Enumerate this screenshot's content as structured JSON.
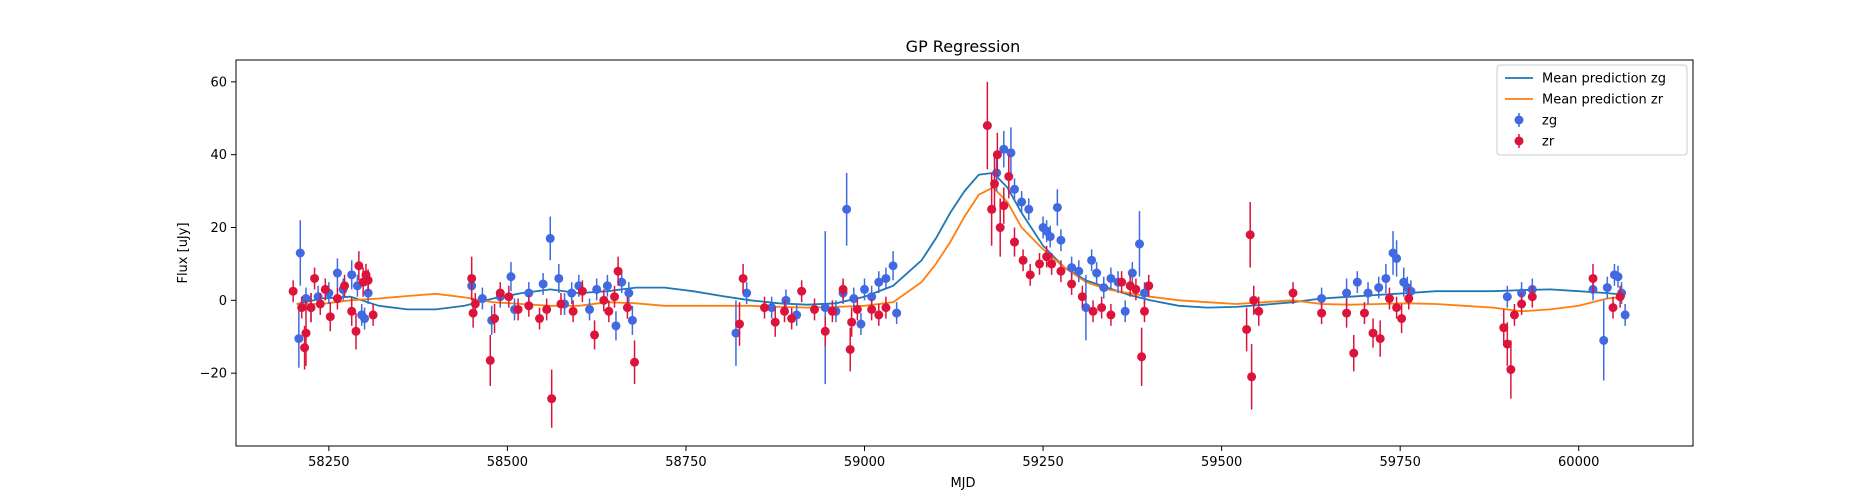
{
  "chart_data": {
    "type": "scatter",
    "title": "GP Regression",
    "xlabel": "MJD",
    "ylabel": "Flux [uJy]",
    "xlim": [
      58120,
      60160
    ],
    "ylim": [
      -40,
      66
    ],
    "xticks": [
      58250,
      58500,
      58750,
      59000,
      59250,
      59500,
      59750,
      60000
    ],
    "yticks": [
      -20,
      0,
      20,
      40,
      60
    ],
    "grid": false,
    "legend_position": "top-right",
    "colors": {
      "zg": "#4169e1",
      "zr": "#dc143c",
      "mean_zg": "#1f77b4",
      "mean_zr": "#ff7f0e"
    },
    "lines": [
      {
        "name": "Mean prediction zg",
        "x": [
          58205,
          58240,
          58280,
          58320,
          58360,
          58400,
          58440,
          58480,
          58520,
          58560,
          58600,
          58640,
          58680,
          58720,
          58760,
          58800,
          58840,
          58880,
          58920,
          58960,
          59000,
          59040,
          59080,
          59100,
          59120,
          59140,
          59160,
          59180,
          59200,
          59220,
          59250,
          59280,
          59310,
          59340,
          59370,
          59400,
          59440,
          59480,
          59520,
          59560,
          59600,
          59640,
          59680,
          59720,
          59760,
          59800,
          59840,
          59880,
          59920,
          59960,
          60000,
          60040,
          60065
        ],
        "y": [
          -1,
          0.5,
          1,
          -1.5,
          -2.5,
          -2.5,
          -1.5,
          0.5,
          2,
          3,
          2,
          2.5,
          3.5,
          3.5,
          2.5,
          1.2,
          0,
          -0.8,
          -1.2,
          -0.8,
          1,
          4,
          11,
          17,
          24,
          30,
          34.5,
          35,
          31,
          24,
          15,
          9,
          5.5,
          3.5,
          1.5,
          0,
          -1.5,
          -2,
          -1.8,
          -1.2,
          -0.5,
          0.5,
          1,
          1.5,
          2,
          2.5,
          2.5,
          2.5,
          2.8,
          3,
          2.5,
          2,
          1.5
        ]
      },
      {
        "name": "Mean prediction zr",
        "x": [
          58205,
          58240,
          58280,
          58320,
          58360,
          58400,
          58440,
          58480,
          58520,
          58560,
          58600,
          58640,
          58680,
          58720,
          58760,
          58800,
          58840,
          58880,
          58920,
          58960,
          59000,
          59040,
          59080,
          59100,
          59120,
          59140,
          59160,
          59180,
          59200,
          59220,
          59250,
          59280,
          59310,
          59340,
          59370,
          59400,
          59440,
          59480,
          59520,
          59560,
          59600,
          59640,
          59680,
          59720,
          59760,
          59800,
          59840,
          59880,
          59920,
          59960,
          60000,
          60040,
          60065
        ],
        "y": [
          -1,
          -1,
          0,
          0.5,
          1.2,
          1.8,
          0.8,
          -0.5,
          -1,
          -1.5,
          -1.5,
          -0.5,
          -0.8,
          -1.5,
          -1.5,
          -1.5,
          -1.5,
          -1.8,
          -2,
          -1.8,
          -1.5,
          -0.5,
          5,
          10,
          16,
          23,
          29,
          31,
          27,
          20,
          14,
          9,
          5,
          3,
          2,
          1,
          0,
          -0.5,
          -1,
          -0.5,
          0,
          -1,
          -1.2,
          -1,
          -0.8,
          -1,
          -1.5,
          -2,
          -3,
          -2.5,
          -1.5,
          0.5,
          1
        ]
      }
    ],
    "series": [
      {
        "name": "zg",
        "points": [
          [
            58208,
            -10.5,
            8
          ],
          [
            58210,
            13,
            9
          ],
          [
            58218,
            0.5,
            3
          ],
          [
            58225,
            -2,
            4
          ],
          [
            58235,
            1,
            3
          ],
          [
            58250,
            2,
            3
          ],
          [
            58262,
            7.5,
            4
          ],
          [
            58270,
            3,
            3
          ],
          [
            58282,
            7,
            4
          ],
          [
            58290,
            4,
            3
          ],
          [
            58296,
            -4,
            3
          ],
          [
            58300,
            -5,
            3
          ],
          [
            58305,
            2,
            3
          ],
          [
            58450,
            4,
            4
          ],
          [
            58465,
            0.5,
            3
          ],
          [
            58478,
            -5.5,
            4
          ],
          [
            58490,
            1,
            3
          ],
          [
            58505,
            6.5,
            4
          ],
          [
            58510,
            -2.5,
            3
          ],
          [
            58530,
            2,
            3
          ],
          [
            58550,
            4.5,
            3
          ],
          [
            58560,
            17,
            6
          ],
          [
            58572,
            6,
            4
          ],
          [
            58580,
            -1,
            3
          ],
          [
            58590,
            2,
            3
          ],
          [
            58600,
            4,
            3
          ],
          [
            58615,
            -2.5,
            3
          ],
          [
            58625,
            3,
            3
          ],
          [
            58640,
            4,
            3
          ],
          [
            58652,
            -7,
            4
          ],
          [
            58660,
            5,
            3
          ],
          [
            58670,
            2,
            3
          ],
          [
            58675,
            -5.5,
            4
          ],
          [
            58820,
            -9,
            9
          ],
          [
            58835,
            2,
            3
          ],
          [
            58870,
            -2,
            3
          ],
          [
            58890,
            0,
            3
          ],
          [
            58905,
            -4,
            3
          ],
          [
            58945,
            -2,
            21
          ],
          [
            58960,
            -3,
            3
          ],
          [
            58970,
            2,
            3
          ],
          [
            58975,
            25,
            10
          ],
          [
            58985,
            0.5,
            3
          ],
          [
            58995,
            -6.5,
            3
          ],
          [
            59000,
            3,
            3
          ],
          [
            59010,
            1,
            3
          ],
          [
            59020,
            5,
            3
          ],
          [
            59030,
            6,
            3
          ],
          [
            59040,
            9.5,
            4
          ],
          [
            59045,
            -3.5,
            3
          ],
          [
            59185,
            35,
            5
          ],
          [
            59195,
            41.5,
            5
          ],
          [
            59205,
            40.5,
            7
          ],
          [
            59210,
            30.5,
            3
          ],
          [
            59220,
            27,
            3
          ],
          [
            59230,
            25,
            3
          ],
          [
            59250,
            20,
            3
          ],
          [
            59255,
            19,
            3
          ],
          [
            59260,
            17.5,
            3
          ],
          [
            59270,
            25.5,
            5
          ],
          [
            59275,
            16.5,
            3
          ],
          [
            59290,
            9,
            3
          ],
          [
            59300,
            8,
            3
          ],
          [
            59310,
            -2,
            9
          ],
          [
            59318,
            11,
            3
          ],
          [
            59325,
            7.5,
            3
          ],
          [
            59335,
            3.5,
            3
          ],
          [
            59345,
            6,
            3
          ],
          [
            59355,
            5,
            3
          ],
          [
            59365,
            -3,
            3
          ],
          [
            59375,
            7.5,
            3
          ],
          [
            59385,
            15.5,
            9
          ],
          [
            59392,
            2,
            3
          ],
          [
            59640,
            0.5,
            3
          ],
          [
            59675,
            2,
            4
          ],
          [
            59690,
            5,
            3
          ],
          [
            59705,
            2,
            3
          ],
          [
            59720,
            3.5,
            3
          ],
          [
            59730,
            6,
            4
          ],
          [
            59740,
            13,
            6
          ],
          [
            59745,
            11.5,
            5
          ],
          [
            59755,
            5,
            4
          ],
          [
            59760,
            3.5,
            3
          ],
          [
            59765,
            2.5,
            3
          ],
          [
            59900,
            1,
            3
          ],
          [
            59920,
            2,
            3
          ],
          [
            59935,
            3,
            3
          ],
          [
            60020,
            3,
            3
          ],
          [
            60035,
            -11,
            11
          ],
          [
            60040,
            3.5,
            3
          ],
          [
            60050,
            7,
            3
          ],
          [
            60055,
            6.5,
            3
          ],
          [
            60060,
            2,
            3
          ],
          [
            60065,
            -4,
            3
          ]
        ]
      },
      {
        "name": "zr",
        "points": [
          [
            58200,
            2.5,
            3
          ],
          [
            58212,
            -2,
            3
          ],
          [
            58216,
            -13,
            6
          ],
          [
            58218,
            -9,
            9
          ],
          [
            58225,
            -2,
            4
          ],
          [
            58230,
            6,
            3
          ],
          [
            58238,
            -1,
            3
          ],
          [
            58245,
            3,
            3
          ],
          [
            58252,
            -4.5,
            4
          ],
          [
            58262,
            0.5,
            3
          ],
          [
            58272,
            4,
            3
          ],
          [
            58282,
            -3,
            4
          ],
          [
            58288,
            -8.5,
            5
          ],
          [
            58292,
            9.5,
            4
          ],
          [
            58298,
            5,
            4
          ],
          [
            58302,
            7,
            3
          ],
          [
            58305,
            5.5,
            3
          ],
          [
            58312,
            -4,
            3
          ],
          [
            58450,
            6,
            6
          ],
          [
            58452,
            -3.5,
            4
          ],
          [
            58455,
            -1,
            3
          ],
          [
            58476,
            -16.5,
            7
          ],
          [
            58482,
            -5,
            4
          ],
          [
            58490,
            2,
            3
          ],
          [
            58502,
            1,
            3
          ],
          [
            58515,
            -2.5,
            3
          ],
          [
            58530,
            -1.5,
            3
          ],
          [
            58545,
            -5,
            3
          ],
          [
            58555,
            -2.5,
            3
          ],
          [
            58562,
            -27,
            8
          ],
          [
            58575,
            -1,
            3
          ],
          [
            58592,
            -3,
            3
          ],
          [
            58605,
            2.5,
            3
          ],
          [
            58622,
            -9.5,
            4
          ],
          [
            58635,
            0,
            3
          ],
          [
            58642,
            -3,
            3
          ],
          [
            58650,
            1,
            3
          ],
          [
            58655,
            8,
            4
          ],
          [
            58668,
            -2,
            3
          ],
          [
            58678,
            -17,
            6
          ],
          [
            58825,
            -6.5,
            6
          ],
          [
            58830,
            6,
            4
          ],
          [
            58860,
            -2,
            3
          ],
          [
            58875,
            -6,
            4
          ],
          [
            58888,
            -3,
            3
          ],
          [
            58898,
            -5,
            3
          ],
          [
            58912,
            2.5,
            3
          ],
          [
            58930,
            -2.5,
            3
          ],
          [
            58945,
            -8.5,
            4
          ],
          [
            58955,
            -3,
            3
          ],
          [
            58970,
            3,
            3
          ],
          [
            58980,
            -13.5,
            6
          ],
          [
            58982,
            -6,
            4
          ],
          [
            58990,
            -2.5,
            3
          ],
          [
            59010,
            -2.5,
            3
          ],
          [
            59020,
            -4,
            3
          ],
          [
            59030,
            -2,
            3
          ],
          [
            59172,
            48,
            12
          ],
          [
            59178,
            25,
            10
          ],
          [
            59182,
            32,
            8
          ],
          [
            59186,
            40,
            6
          ],
          [
            59190,
            20,
            8
          ],
          [
            59195,
            26,
            5
          ],
          [
            59202,
            34,
            6
          ],
          [
            59210,
            16,
            4
          ],
          [
            59222,
            11,
            3
          ],
          [
            59232,
            7,
            3
          ],
          [
            59245,
            10,
            3
          ],
          [
            59255,
            12,
            3
          ],
          [
            59262,
            10,
            3
          ],
          [
            59275,
            8,
            3
          ],
          [
            59290,
            4.5,
            3
          ],
          [
            59305,
            1,
            3
          ],
          [
            59320,
            -3,
            3
          ],
          [
            59332,
            -2,
            3
          ],
          [
            59345,
            -4,
            3
          ],
          [
            59360,
            5,
            3
          ],
          [
            59372,
            4,
            3
          ],
          [
            59380,
            3,
            3
          ],
          [
            59388,
            -15.5,
            8
          ],
          [
            59392,
            -3,
            3
          ],
          [
            59398,
            4,
            3
          ],
          [
            59535,
            -8,
            6
          ],
          [
            59540,
            18,
            9
          ],
          [
            59542,
            -21,
            9
          ],
          [
            59545,
            0,
            4
          ],
          [
            59552,
            -3,
            4
          ],
          [
            59600,
            2,
            3
          ],
          [
            59640,
            -3.5,
            3
          ],
          [
            59675,
            -3.5,
            4
          ],
          [
            59685,
            -14.5,
            5
          ],
          [
            59700,
            -3.5,
            3
          ],
          [
            59712,
            -9,
            4
          ],
          [
            59722,
            -10.5,
            5
          ],
          [
            59735,
            0.5,
            3
          ],
          [
            59745,
            -2,
            3
          ],
          [
            59752,
            -5,
            4
          ],
          [
            59762,
            0.5,
            3
          ],
          [
            59895,
            -7.5,
            5
          ],
          [
            59900,
            -12,
            6
          ],
          [
            59905,
            -19,
            8
          ],
          [
            59910,
            -4,
            3
          ],
          [
            59920,
            -1,
            3
          ],
          [
            59935,
            1,
            3
          ],
          [
            60020,
            6,
            4
          ],
          [
            60048,
            -2,
            3
          ],
          [
            60058,
            1,
            3
          ]
        ]
      }
    ]
  }
}
